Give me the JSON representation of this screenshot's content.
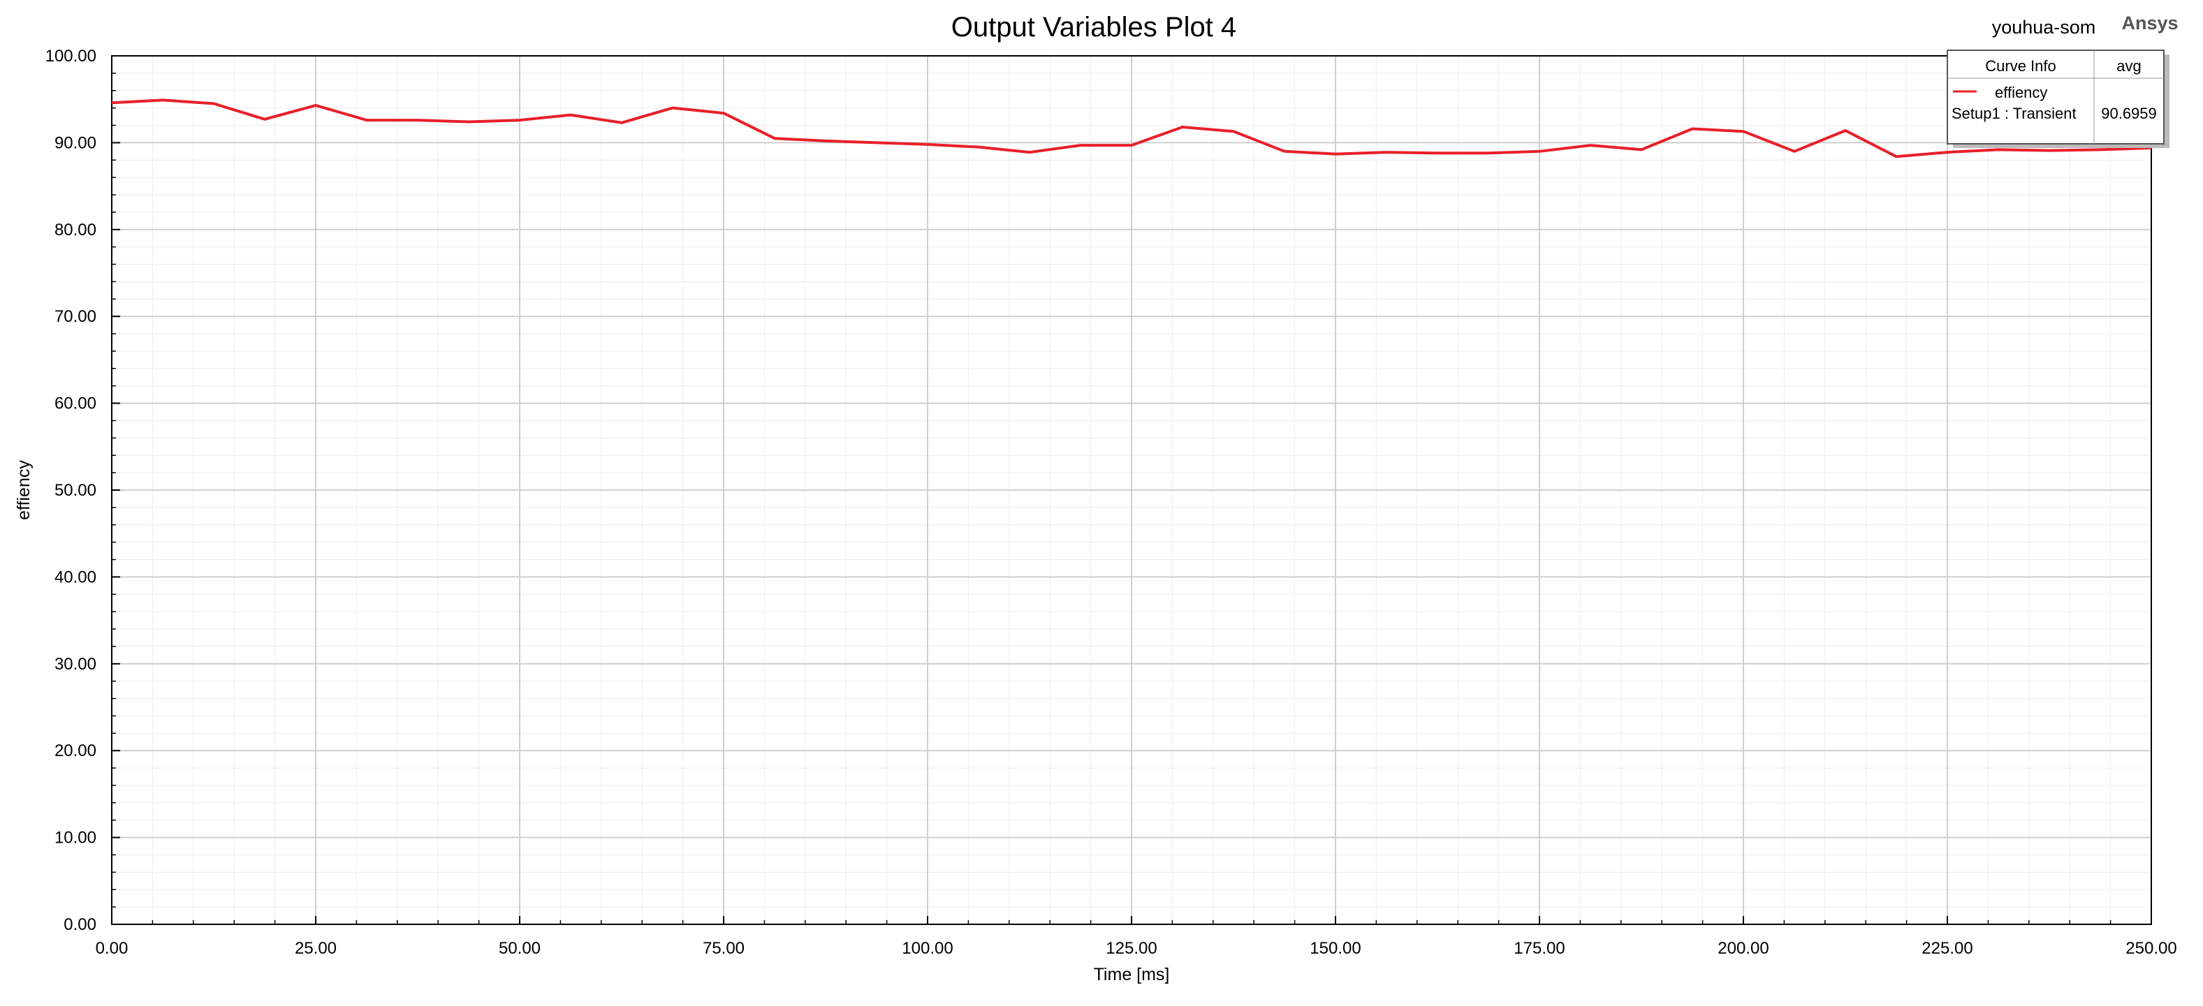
{
  "header": {
    "design_name": "youhua-som",
    "brand": "Ansys"
  },
  "legend": {
    "col_curve_info": "Curve Info",
    "col_avg": "avg",
    "series_name": "effiency",
    "setup_label": "Setup1 : Transient",
    "avg_value": "90.6959",
    "line_color": "#e8202a"
  },
  "chart_data": {
    "type": "line",
    "title": "Output Variables Plot 4",
    "xlabel": "Time [ms]",
    "ylabel": "effiency",
    "xlim": [
      0,
      250
    ],
    "ylim": [
      0,
      100
    ],
    "x_ticks": [
      "0.00",
      "25.00",
      "50.00",
      "75.00",
      "100.00",
      "125.00",
      "150.00",
      "175.00",
      "200.00",
      "225.00",
      "250.00"
    ],
    "y_ticks": [
      "0.00",
      "10.00",
      "20.00",
      "30.00",
      "40.00",
      "50.00",
      "60.00",
      "70.00",
      "80.00",
      "90.00",
      "100.00"
    ],
    "grid": true,
    "legend_position": "top-right",
    "series": [
      {
        "name": "effiency",
        "color": "#e8202a",
        "x": [
          0,
          6.25,
          12.5,
          18.75,
          25,
          31.25,
          37.5,
          43.75,
          50,
          56.25,
          62.5,
          68.75,
          75,
          81.25,
          87.5,
          93.75,
          100,
          106.25,
          112.5,
          118.75,
          125,
          131.25,
          137.5,
          143.75,
          150,
          156.25,
          162.5,
          168.75,
          175,
          181.25,
          187.5,
          193.75,
          200,
          206.25,
          212.5,
          218.75,
          225,
          231.25,
          237.5,
          243.75,
          250
        ],
        "y": [
          94.6,
          94.9,
          94.5,
          92.7,
          94.3,
          92.6,
          92.6,
          92.4,
          92.6,
          93.2,
          92.3,
          94.0,
          93.4,
          90.5,
          90.2,
          90.0,
          89.8,
          89.5,
          88.9,
          89.7,
          89.7,
          91.8,
          91.3,
          89.0,
          88.7,
          88.9,
          88.8,
          88.8,
          89.0,
          89.7,
          89.2,
          91.6,
          91.3,
          89.0,
          91.4,
          88.4,
          88.9,
          89.2,
          89.1,
          89.2,
          89.4
        ]
      }
    ]
  }
}
